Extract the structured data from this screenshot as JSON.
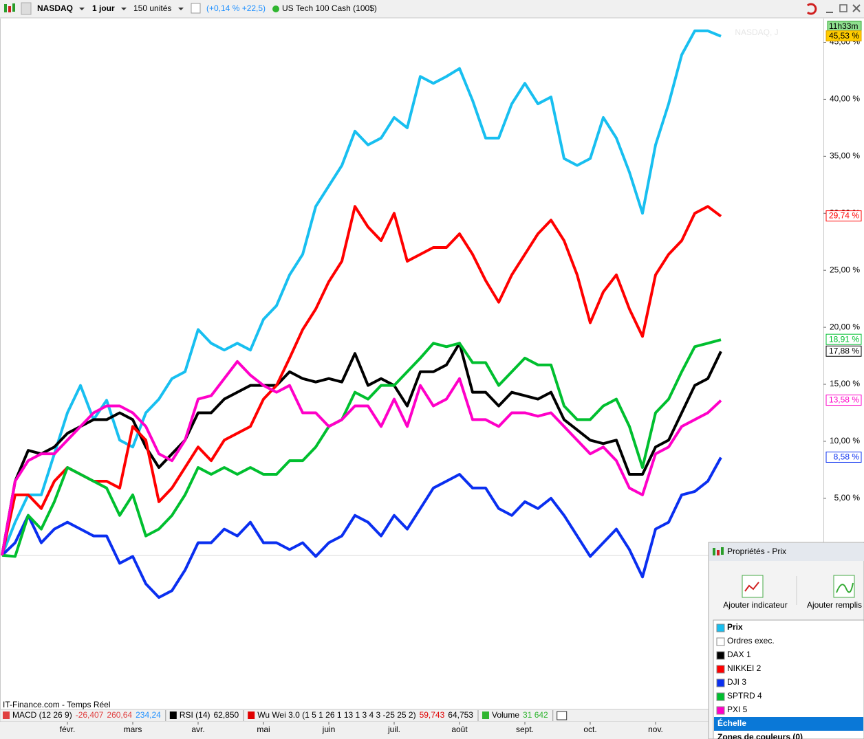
{
  "toolbar": {
    "symbol": "NASDAQ",
    "period": "1 jour",
    "units": "150 unités",
    "change": "(+0,14 % +22,5)",
    "instrument": "US Tech 100 Cash (100$)"
  },
  "chart_data": {
    "type": "line",
    "watermark": "NASDAQ, J",
    "timer": "11h33m",
    "source": "IT-Finance.com - Temps Réel",
    "categories": [
      null,
      null,
      null,
      null,
      null,
      "févr.",
      null,
      null,
      null,
      null,
      "mars",
      null,
      null,
      null,
      null,
      "avr.",
      null,
      null,
      null,
      null,
      "mai",
      null,
      null,
      null,
      null,
      "juin",
      null,
      null,
      null,
      null,
      "juil.",
      null,
      null,
      null,
      null,
      "août",
      null,
      null,
      null,
      null,
      "sept.",
      null,
      null,
      null,
      null,
      "oct.",
      null,
      null,
      null,
      null,
      "nov.",
      null,
      null,
      null,
      null,
      null
    ],
    "ylim": [
      -13.4,
      46.9
    ],
    "yticks": [
      {
        "value": 5,
        "label": "5,00 %"
      },
      {
        "value": 10,
        "label": "10,00 %"
      },
      {
        "value": 15,
        "label": "15,00 %"
      },
      {
        "value": 20,
        "label": "20,00 %"
      },
      {
        "value": 25,
        "label": "25,00 %"
      },
      {
        "value": 30,
        "label": "30,00 %"
      },
      {
        "value": 35,
        "label": "35,00 %"
      },
      {
        "value": 40,
        "label": "40,00 %"
      },
      {
        "value": 45,
        "label": "45,00 %"
      }
    ],
    "series": [
      {
        "name": "Prix",
        "color": "#18bff0",
        "values": [
          0,
          2.9,
          5.3,
          5.3,
          8.9,
          12.5,
          14.9,
          11.9,
          13.6,
          10.1,
          9.5,
          12.5,
          13.7,
          15.5,
          16.1,
          19.8,
          18.6,
          18,
          18.6,
          18,
          20.7,
          21.9,
          24.6,
          26.4,
          30.6,
          32.4,
          34.2,
          37.2,
          36,
          36.6,
          38.4,
          37.5,
          42,
          41.4,
          42,
          42.7,
          39.9,
          36.6,
          36.6,
          39.6,
          41.4,
          39.6,
          40.2,
          34.8,
          34.2,
          34.8,
          38.4,
          36.6,
          33.6,
          30,
          36,
          39.6,
          43.9,
          46,
          46,
          45.53
        ],
        "value_labels": [
          null,
          null,
          null,
          null,
          null,
          null,
          null,
          null,
          null,
          null,
          null,
          null,
          null,
          null,
          null,
          null,
          null,
          null,
          null,
          null,
          null,
          null,
          null,
          null,
          null,
          null,
          null,
          null,
          null,
          null,
          null,
          null,
          null,
          null,
          null,
          null,
          null,
          null,
          null,
          null,
          null,
          null,
          null,
          null,
          null,
          null,
          null,
          null,
          null,
          null,
          null,
          null,
          null,
          null,
          null,
          "45,53 %"
        ]
      },
      {
        "name": "DAX 1",
        "color": "#000000",
        "values": [
          0,
          6.5,
          9.2,
          8.9,
          9.5,
          10.7,
          11.3,
          11.9,
          11.9,
          12.5,
          11.9,
          9.5,
          7.7,
          8.9,
          10.1,
          12.5,
          12.5,
          13.7,
          14.3,
          14.9,
          14.9,
          14.9,
          16.1,
          15.5,
          15.2,
          15.5,
          15.2,
          17.7,
          14.9,
          15.5,
          14.9,
          13.1,
          16.1,
          16.1,
          16.7,
          18.6,
          14.3,
          14.3,
          13.1,
          14.3,
          14,
          13.7,
          14.3,
          11.9,
          11,
          10.1,
          9.8,
          10.1,
          7.1,
          7.1,
          9.5,
          10.1,
          12.5,
          14.9,
          15.5,
          17.88
        ],
        "value_labels": [
          null,
          null,
          null,
          null,
          null,
          null,
          null,
          null,
          null,
          null,
          null,
          null,
          null,
          null,
          null,
          null,
          null,
          null,
          null,
          null,
          null,
          null,
          null,
          null,
          null,
          null,
          null,
          null,
          null,
          null,
          null,
          null,
          null,
          null,
          null,
          null,
          null,
          null,
          null,
          null,
          null,
          null,
          null,
          null,
          null,
          null,
          null,
          null,
          null,
          null,
          null,
          null,
          null,
          null,
          null,
          "17,88 %"
        ]
      },
      {
        "name": "NIKKEI 2",
        "color": "#ff0000",
        "values": [
          0,
          5.3,
          5.3,
          4.1,
          6.5,
          7.7,
          7.1,
          6.5,
          6.5,
          5.9,
          11.3,
          10.1,
          4.7,
          5.9,
          7.7,
          9.5,
          8.3,
          10.1,
          10.7,
          11.3,
          13.7,
          14.9,
          17.3,
          19.8,
          21.6,
          24,
          25.8,
          30.6,
          28.8,
          27.6,
          30,
          25.8,
          26.4,
          27,
          27,
          28.2,
          26.4,
          24.1,
          22.2,
          24.6,
          26.4,
          28.2,
          29.4,
          27.6,
          24.6,
          20.4,
          23.1,
          24.6,
          21.6,
          19.2,
          24.6,
          26.4,
          27.6,
          30,
          30.6,
          29.74
        ],
        "value_labels": [
          null,
          null,
          null,
          null,
          null,
          null,
          null,
          null,
          null,
          null,
          null,
          null,
          null,
          null,
          null,
          null,
          null,
          null,
          null,
          null,
          null,
          null,
          null,
          null,
          null,
          null,
          null,
          null,
          null,
          null,
          null,
          null,
          null,
          null,
          null,
          null,
          null,
          null,
          null,
          null,
          null,
          null,
          null,
          null,
          null,
          null,
          null,
          null,
          null,
          null,
          null,
          null,
          null,
          null,
          null,
          "29,74 %"
        ]
      },
      {
        "name": "DJI 3",
        "color": "#0a2ff0",
        "values": [
          0,
          1.1,
          3.5,
          1.1,
          2.3,
          2.9,
          2.3,
          1.7,
          1.7,
          -0.7,
          -0.1,
          -2.5,
          -3.7,
          -3.1,
          -1.3,
          1.1,
          1.1,
          2.3,
          1.7,
          2.9,
          1.1,
          1.1,
          0.5,
          1.1,
          -0.1,
          1.1,
          1.7,
          3.5,
          2.9,
          1.7,
          3.5,
          2.3,
          4.1,
          5.9,
          6.5,
          7.1,
          5.9,
          5.9,
          4.1,
          3.5,
          4.7,
          4.1,
          5,
          3.5,
          1.7,
          -0.1,
          1.1,
          2.3,
          0.5,
          -1.9,
          2.3,
          2.9,
          5.3,
          5.6,
          6.5,
          8.58
        ],
        "value_labels": [
          null,
          null,
          null,
          null,
          null,
          null,
          null,
          null,
          null,
          null,
          null,
          null,
          null,
          null,
          null,
          null,
          null,
          null,
          null,
          null,
          null,
          null,
          null,
          null,
          null,
          null,
          null,
          null,
          null,
          null,
          null,
          null,
          null,
          null,
          null,
          null,
          null,
          null,
          null,
          null,
          null,
          null,
          null,
          null,
          null,
          null,
          null,
          null,
          null,
          null,
          null,
          null,
          null,
          null,
          null,
          "8,58 %"
        ]
      },
      {
        "name": "SPTRD 4",
        "color": "#00bf2f",
        "values": [
          0,
          -0.1,
          3.5,
          2.3,
          4.7,
          7.7,
          7.1,
          6.5,
          5.9,
          3.5,
          5.3,
          1.7,
          2.3,
          3.5,
          5.3,
          7.7,
          7.1,
          7.7,
          7.1,
          7.7,
          7.1,
          7.1,
          8.3,
          8.3,
          9.5,
          11.3,
          11.9,
          14.3,
          13.7,
          14.9,
          14.9,
          16.1,
          17.3,
          18.6,
          18.3,
          18.6,
          16.9,
          16.9,
          14.9,
          16.1,
          17.3,
          16.7,
          16.7,
          13.1,
          11.9,
          11.9,
          13.1,
          13.7,
          11.3,
          7.7,
          12.5,
          13.7,
          16.1,
          18.3,
          18.6,
          18.91
        ],
        "value_labels": [
          null,
          null,
          null,
          null,
          null,
          null,
          null,
          null,
          null,
          null,
          null,
          null,
          null,
          null,
          null,
          null,
          null,
          null,
          null,
          null,
          null,
          null,
          null,
          null,
          null,
          null,
          null,
          null,
          null,
          null,
          null,
          null,
          null,
          null,
          null,
          null,
          null,
          null,
          null,
          null,
          null,
          null,
          null,
          null,
          null,
          null,
          null,
          null,
          null,
          null,
          null,
          null,
          null,
          null,
          null,
          "18,91 %"
        ]
      },
      {
        "name": "PXI 5",
        "color": "#ff00c8",
        "values": [
          0,
          6.5,
          8.3,
          8.9,
          8.9,
          10.1,
          11.3,
          12.5,
          13.1,
          13.1,
          12.5,
          11.3,
          8.9,
          8.3,
          10.1,
          13.7,
          14,
          15.5,
          17,
          15.8,
          14.9,
          14.3,
          14.9,
          12.5,
          12.5,
          11.3,
          11.9,
          13.1,
          13.1,
          11.3,
          13.7,
          11.3,
          14.9,
          13.1,
          13.7,
          15.5,
          11.9,
          11.9,
          11.3,
          12.5,
          12.5,
          12.2,
          12.5,
          11.3,
          10.1,
          8.9,
          9.5,
          8.3,
          5.9,
          5.3,
          8.9,
          9.5,
          11.3,
          11.9,
          12.5,
          13.58
        ],
        "value_labels": [
          null,
          null,
          null,
          null,
          null,
          null,
          null,
          null,
          null,
          null,
          null,
          null,
          null,
          null,
          null,
          null,
          null,
          null,
          null,
          null,
          null,
          null,
          null,
          null,
          null,
          null,
          null,
          null,
          null,
          null,
          null,
          null,
          null,
          null,
          null,
          null,
          null,
          null,
          null,
          null,
          null,
          null,
          null,
          null,
          null,
          null,
          null,
          null,
          null,
          null,
          null,
          null,
          null,
          null,
          null,
          "13,58 %"
        ]
      }
    ]
  },
  "indicators": [
    {
      "name": "MACD (12 26 9)",
      "values": [
        "-26,407",
        "260,64",
        "234,24"
      ]
    },
    {
      "name": "RSI (14)",
      "values": [
        "62,850"
      ]
    },
    {
      "name": "Wu Wei 3.0 (1 5 1 26 1 13 1 3 4 3 -25 25 2)",
      "values": [
        "59,743",
        "64,753"
      ]
    },
    {
      "name": "Volume",
      "values": [
        "31 642"
      ]
    }
  ],
  "properties_panel": {
    "title": "Propriétés - Prix",
    "buttons": [
      "Ajouter indicateur",
      "Ajouter remplis"
    ],
    "orders": "Ordres exec.",
    "scale": "Échelle",
    "zones": "Zones de couleurs (0)"
  }
}
